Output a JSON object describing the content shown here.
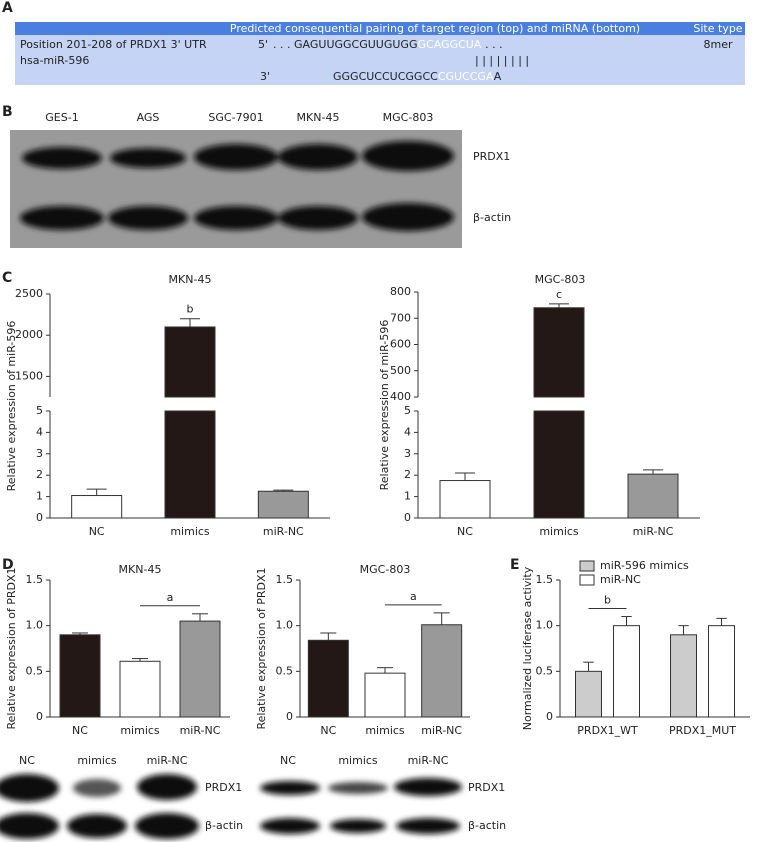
{
  "panel_labels": [
    "A",
    "B",
    "C",
    "D",
    "E"
  ],
  "panel_a": {
    "header": {
      "pairing": "Predicted consequential pairing of target region (top) and miRNA (bottom)",
      "site_type": "Site type"
    },
    "target": {
      "name": "Position 201-208 of PRDX1 3' UTR",
      "end": "5'",
      "prefix": ". . . GAGUUGGCGUUGUGG",
      "seed": "GCAGGCUA",
      "suffix": ". . .",
      "site_type": "8mer"
    },
    "pairing": "| | | | | | | |",
    "mirna": {
      "name": "hsa-miR-596",
      "end": "3'",
      "prefix": "GGGCUCCUCGGCC",
      "seed": "CGUCCGA",
      "suffix": "A"
    }
  },
  "blot_b": {
    "lanes": [
      "GES-1",
      "AGS",
      "SGC-7901",
      "MKN-45",
      "MGC-803"
    ],
    "bands": [
      "PRDX1",
      "β-actin"
    ]
  },
  "blot_d": [
    {
      "lanes": [
        "NC",
        "mimics",
        "miR-NC"
      ],
      "bands": [
        "PRDX1",
        "β-actin"
      ]
    },
    {
      "lanes": [
        "NC",
        "mimics",
        "miR-NC"
      ],
      "bands": [
        "PRDX1",
        "β-actin"
      ]
    }
  ],
  "chart_data": [
    {
      "type": "broken_bar",
      "title": "MKN-45",
      "ylabel": "Relative expression of miR-596",
      "categories": [
        "NC",
        "mimics",
        "miR-NC"
      ],
      "values": [
        1.05,
        2100,
        1.25
      ],
      "errors": [
        0.3,
        100,
        0.05
      ],
      "colors": [
        "#ffffff",
        "#231815",
        "#999999"
      ],
      "segments": [
        {
          "ylim": [
            0,
            5
          ],
          "yticks": [
            0,
            1,
            2,
            3,
            4,
            5
          ]
        },
        {
          "ylim": [
            1250,
            2500
          ],
          "yticks": [
            1500,
            2000,
            2500
          ]
        }
      ],
      "annotations": [
        {
          "label": "b",
          "categories": [
            "mimics"
          ]
        }
      ]
    },
    {
      "type": "broken_bar",
      "title": "MGC-803",
      "ylabel": "Relative expression of miR-596",
      "categories": [
        "NC",
        "mimics",
        "miR-NC"
      ],
      "values": [
        1.75,
        740,
        2.05
      ],
      "errors": [
        0.35,
        15,
        0.2
      ],
      "colors": [
        "#ffffff",
        "#231815",
        "#999999"
      ],
      "segments": [
        {
          "ylim": [
            0,
            5
          ],
          "yticks": [
            0,
            1,
            2,
            3,
            4,
            5
          ]
        },
        {
          "ylim": [
            400,
            800
          ],
          "yticks": [
            400,
            500,
            600,
            700,
            800
          ]
        }
      ],
      "annotations": [
        {
          "label": "c",
          "categories": [
            "mimics"
          ]
        }
      ]
    },
    {
      "type": "bar",
      "title": "MKN-45",
      "ylabel": "Relative expression of PRDX1",
      "categories": [
        "NC",
        "mimics",
        "miR-NC"
      ],
      "values": [
        0.9,
        0.61,
        1.05
      ],
      "errors": [
        0.02,
        0.03,
        0.08
      ],
      "colors": [
        "#231815",
        "#ffffff",
        "#999999"
      ],
      "ylim": [
        0,
        1.5
      ],
      "yticks": [
        0,
        0.5,
        {
          "value": 1,
          "label": "1.0"
        },
        1.5
      ],
      "annotations": [
        {
          "label": "a",
          "categories": [
            "mimics",
            "miR-NC"
          ]
        }
      ]
    },
    {
      "type": "bar",
      "title": "MGC-803",
      "ylabel": "Relative expression of PRDX1",
      "categories": [
        "NC",
        "mimics",
        "miR-NC"
      ],
      "values": [
        0.84,
        0.48,
        1.01
      ],
      "errors": [
        0.08,
        0.06,
        0.13
      ],
      "colors": [
        "#231815",
        "#ffffff",
        "#999999"
      ],
      "ylim": [
        0,
        1.5
      ],
      "yticks": [
        0,
        0.5,
        {
          "value": 1,
          "label": "1.0"
        },
        1.5
      ],
      "annotations": [
        {
          "label": "a",
          "categories": [
            "mimics",
            "miR-NC"
          ]
        }
      ]
    },
    {
      "type": "grouped_bar",
      "ylabel": "Normalized luciferase activity",
      "categories": [
        "PRDX1_WT",
        "PRDX1_MUT"
      ],
      "series": [
        {
          "name": "miR-596 mimics",
          "color": "#cccccc",
          "values": [
            0.5,
            0.9
          ],
          "errors": [
            0.1,
            0.1
          ]
        },
        {
          "name": "miR-NC",
          "color": "#ffffff",
          "values": [
            1.0,
            1.0
          ],
          "errors": [
            0.1,
            0.08
          ]
        }
      ],
      "ylim": [
        0,
        1.5
      ],
      "yticks": [
        0,
        0.5,
        {
          "value": 1,
          "label": "1.0"
        },
        1.5
      ],
      "annotations": [
        {
          "label": "b",
          "categories": [
            "PRDX1_WT"
          ]
        }
      ]
    }
  ]
}
